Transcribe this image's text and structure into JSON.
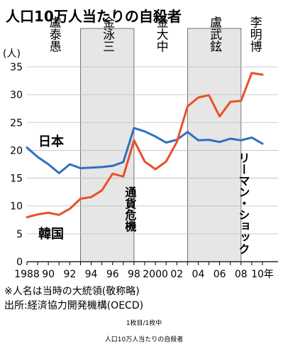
{
  "chart_data": {
    "type": "line",
    "title": "人口10万人当たりの自殺者",
    "ylabel": "(人)",
    "ylim": [
      0,
      35
    ],
    "xlim": [
      1988,
      2010
    ],
    "y_ticks": [
      "0",
      "5",
      "10",
      "15",
      "20",
      "25",
      "30",
      "35"
    ],
    "x_ticks": [
      {
        "year": 1988,
        "label": "1988"
      },
      {
        "year": 1990,
        "label": "90"
      },
      {
        "year": 1992,
        "label": "92"
      },
      {
        "year": 1994,
        "label": "94"
      },
      {
        "year": 1996,
        "label": "96"
      },
      {
        "year": 1998,
        "label": "98"
      },
      {
        "year": 2000,
        "label": "2000"
      },
      {
        "year": 2002,
        "label": "02"
      },
      {
        "year": 2004,
        "label": "04"
      },
      {
        "year": 2006,
        "label": "06"
      },
      {
        "year": 2008,
        "label": "08"
      },
      {
        "year": 2010,
        "label": "10年"
      }
    ],
    "series": [
      {
        "name": "日本",
        "color": "#2f6fbf",
        "x": [
          1988,
          1989,
          1990,
          1991,
          1992,
          1993,
          1994,
          1995,
          1996,
          1997,
          1998,
          1999,
          2000,
          2001,
          2002,
          2003,
          2004,
          2005,
          2006,
          2007,
          2008,
          2009,
          2010
        ],
        "values": [
          20.5,
          18.8,
          17.5,
          15.9,
          17.5,
          16.8,
          16.9,
          17.0,
          17.2,
          17.9,
          24.0,
          23.4,
          22.5,
          21.4,
          21.9,
          23.3,
          21.8,
          21.9,
          21.5,
          22.1,
          21.8,
          22.3,
          21.2
        ]
      },
      {
        "name": "韓国",
        "color": "#e8502a",
        "x": [
          1988,
          1989,
          1990,
          1991,
          1992,
          1993,
          1994,
          1995,
          1996,
          1997,
          1998,
          1999,
          2000,
          2001,
          2002,
          2003,
          2004,
          2005,
          2006,
          2007,
          2008,
          2009,
          2010
        ],
        "values": [
          8.0,
          8.5,
          8.8,
          8.4,
          9.5,
          11.3,
          11.6,
          12.8,
          15.8,
          15.3,
          21.8,
          18.0,
          16.6,
          18.0,
          21.5,
          27.9,
          29.5,
          29.9,
          26.1,
          28.7,
          28.9,
          33.9,
          33.6
        ]
      }
    ],
    "presidents": [
      {
        "name": "盧泰愚",
        "from": 1988,
        "to": 1993,
        "shaded": false
      },
      {
        "name": "金泳三",
        "from": 1993,
        "to": 1998,
        "shaded": true
      },
      {
        "name": "金大中",
        "from": 1998,
        "to": 2003,
        "shaded": false
      },
      {
        "name": "盧武鉉",
        "from": 2003,
        "to": 2008,
        "shaded": true
      },
      {
        "name": "李明博",
        "from": 2008,
        "to": 2010.5,
        "shaded": false
      }
    ],
    "annotations": [
      {
        "text": "通貨危機",
        "year": 1997.6
      },
      {
        "text": "リーマン・ショック",
        "year": 2008.2
      }
    ]
  },
  "notes": [
    "※人名は当時の大統領(敬称略)",
    "出所:経済協力開発機構(OECD)"
  ],
  "page_indicator": "1枚目/1枚中",
  "caption": "人口10万人当たりの自殺者"
}
